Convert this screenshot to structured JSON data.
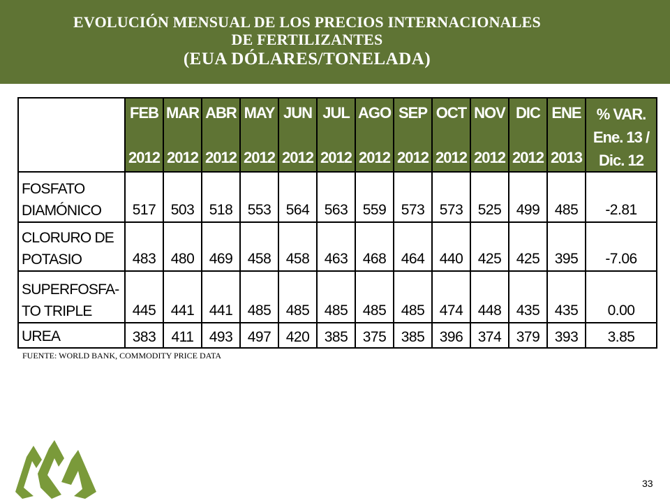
{
  "header": {
    "title_line1": "EVOLUCIÓN MENSUAL DE LOS PRECIOS INTERNACIONALES",
    "title_line2": "DE FERTILIZANTES",
    "title_line3": "(EUA DÓLARES/TONELADA)"
  },
  "table": {
    "columns": [
      {
        "month": "FEB",
        "year": "2012"
      },
      {
        "month": "MAR",
        "year": "2012"
      },
      {
        "month": "ABR",
        "year": "2012"
      },
      {
        "month": "MAY",
        "year": "2012"
      },
      {
        "month": "JUN",
        "year": "2012"
      },
      {
        "month": "JUL",
        "year": "2012"
      },
      {
        "month": "AGO",
        "year": "2012"
      },
      {
        "month": "SEP",
        "year": "2012"
      },
      {
        "month": "OCT",
        "year": "2012"
      },
      {
        "month": "NOV",
        "year": "2012"
      },
      {
        "month": "DIC",
        "year": "2012"
      },
      {
        "month": "ENE",
        "year": "2013"
      }
    ],
    "pct_header": {
      "line1": "% VAR.",
      "line2": "Ene. 13 /",
      "line3": "Dic. 12"
    },
    "rows": [
      {
        "label_line1": "FOSFATO",
        "label_line2": "DIAMÓNICO",
        "values": [
          "517",
          "503",
          "518",
          "553",
          "564",
          "563",
          "559",
          "573",
          "573",
          "525",
          "499",
          "485"
        ],
        "pct": "-2.81"
      },
      {
        "label_line1": "CLORURO DE",
        "label_line2": "POTASIO",
        "values": [
          "483",
          "480",
          "469",
          "458",
          "458",
          "463",
          "468",
          "464",
          "440",
          "425",
          "425",
          "395"
        ],
        "pct": "-7.06"
      },
      {
        "label_line1": "SUPERFOSFA-",
        "label_line2": "TO TRIPLE",
        "values": [
          "445",
          "441",
          "441",
          "485",
          "485",
          "485",
          "485",
          "485",
          "474",
          "448",
          "435",
          "435"
        ],
        "pct": "0.00"
      },
      {
        "label_line1": "UREA",
        "label_line2": "",
        "values": [
          "383",
          "411",
          "493",
          "497",
          "420",
          "385",
          "375",
          "385",
          "396",
          "374",
          "379",
          "393"
        ],
        "pct": "3.85"
      }
    ]
  },
  "footer": {
    "source": "FUENTE: WORLD BANK, COMMODITY PRICE DATA",
    "page_number": "33"
  },
  "colors": {
    "accent_green": "#5f7434",
    "logo_green": "#7a9a3a"
  },
  "icons": {
    "logo": "mountains-logo-icon"
  }
}
